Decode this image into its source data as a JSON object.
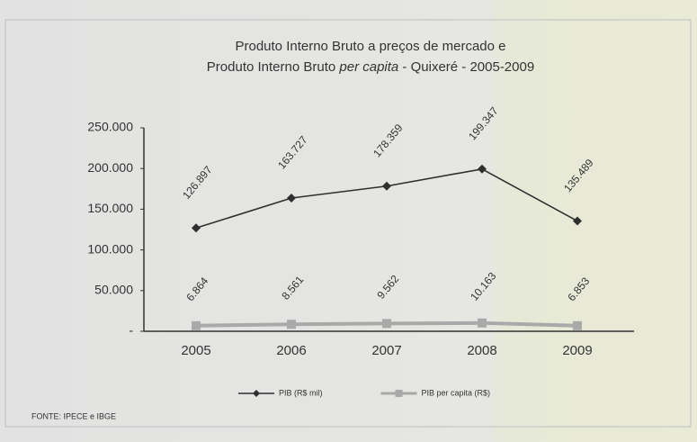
{
  "chart_data": {
    "type": "line",
    "title": {
      "line1": "Produto Interno Bruto a preços de mercado e",
      "line2": [
        "Produto Interno Bruto ",
        "per capita",
        " - Quixeré - 2005-2009"
      ]
    },
    "categories": [
      "2005",
      "2006",
      "2007",
      "2008",
      "2009"
    ],
    "series": [
      {
        "name": "PIB (R$ mil)",
        "color": "#2f2f2f",
        "marker": "diamond",
        "values": [
          126897,
          163727,
          178359,
          199347,
          135489
        ],
        "value_labels": [
          "126.897",
          "163.727",
          "178.359",
          "199.347",
          "135.489"
        ]
      },
      {
        "name": "PIB per capita (R$)",
        "color": "#a9a9a9",
        "marker": "square",
        "values": [
          6864,
          8561,
          9562,
          10163,
          6853
        ],
        "value_labels": [
          "6.864",
          "8.561",
          "9.562",
          "10.163",
          "6.853"
        ]
      }
    ],
    "ylim": [
      0,
      250000
    ],
    "yticks": [
      {
        "value": 0,
        "label": "-"
      },
      {
        "value": 50000,
        "label": "50.000"
      },
      {
        "value": 100000,
        "label": "100.000"
      },
      {
        "value": 150000,
        "label": "150.000"
      },
      {
        "value": 200000,
        "label": "200.000"
      },
      {
        "value": 250000,
        "label": "250.000"
      }
    ],
    "grid": false,
    "legend": "bottom",
    "source": "FONTE: IPECE e IBGE"
  }
}
